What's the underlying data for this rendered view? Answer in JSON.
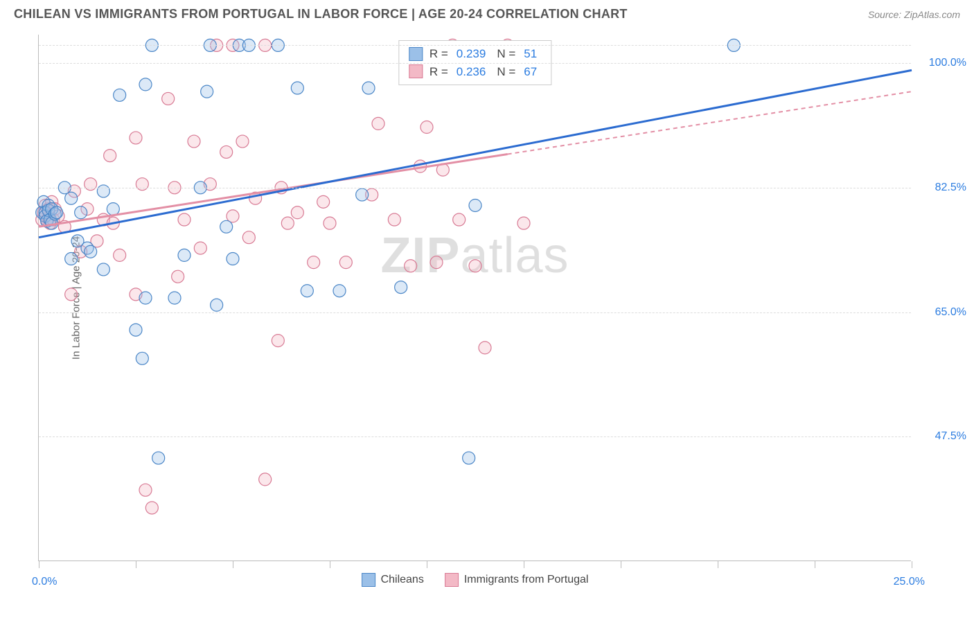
{
  "header": {
    "title": "CHILEAN VS IMMIGRANTS FROM PORTUGAL IN LABOR FORCE | AGE 20-24 CORRELATION CHART",
    "source": "Source: ZipAtlas.com"
  },
  "chart": {
    "type": "scatter",
    "y_axis_title": "In Labor Force | Age 20-24",
    "watermark": "ZIPatlas",
    "background_color": "#ffffff",
    "grid_color": "#dddddd",
    "axis_color": "#bbbbbb",
    "x_range": [
      0,
      27
    ],
    "y_range": [
      30,
      104
    ],
    "x_ticks": [
      0,
      3,
      6,
      9,
      12,
      15,
      18,
      21,
      24,
      27
    ],
    "y_ticks": [
      {
        "v": 47.5,
        "label": "47.5%"
      },
      {
        "v": 65.0,
        "label": "65.0%"
      },
      {
        "v": 82.5,
        "label": "82.5%"
      },
      {
        "v": 100.0,
        "label": "100.0%"
      }
    ],
    "y_tick_color": "#2b7ce0",
    "x_corner_left": "0.0%",
    "x_corner_right": "25.0%",
    "x_corner_color": "#2b7ce0",
    "marker_radius": 9,
    "marker_stroke_width": 1.2,
    "marker_fill_opacity": 0.35,
    "trend_line_width": 3,
    "series": [
      {
        "id": "chileans",
        "label": "Chileans",
        "fill": "#9bc0e8",
        "stroke": "#4a86c7",
        "r_value": "0.239",
        "n_value": "51",
        "trend": {
          "x1": 0,
          "y1": 75.5,
          "x2": 27,
          "y2": 99.0,
          "dash": "none",
          "color": "#2b6bd0"
        },
        "points": [
          [
            0.1,
            79
          ],
          [
            0.15,
            80.5
          ],
          [
            0.2,
            79
          ],
          [
            0.2,
            78.5
          ],
          [
            0.25,
            77.8
          ],
          [
            0.3,
            80
          ],
          [
            0.3,
            79.3
          ],
          [
            0.35,
            78
          ],
          [
            0.4,
            79.5
          ],
          [
            0.4,
            77.5
          ],
          [
            0.5,
            78.8
          ],
          [
            0.55,
            79
          ],
          [
            0.8,
            82.5
          ],
          [
            1.0,
            81
          ],
          [
            1.0,
            72.5
          ],
          [
            1.2,
            75
          ],
          [
            1.3,
            79
          ],
          [
            1.5,
            74
          ],
          [
            1.6,
            73.5
          ],
          [
            2.0,
            82
          ],
          [
            2.0,
            71
          ],
          [
            2.3,
            79.5
          ],
          [
            2.5,
            95.5
          ],
          [
            3.0,
            62.5
          ],
          [
            3.2,
            58.5
          ],
          [
            3.3,
            67
          ],
          [
            3.3,
            97
          ],
          [
            3.5,
            102.5
          ],
          [
            3.7,
            44.5
          ],
          [
            4.2,
            67
          ],
          [
            4.5,
            73
          ],
          [
            5.0,
            82.5
          ],
          [
            5.2,
            96
          ],
          [
            5.3,
            102.5
          ],
          [
            5.5,
            66
          ],
          [
            5.8,
            77
          ],
          [
            6.0,
            72.5
          ],
          [
            6.2,
            102.5
          ],
          [
            6.5,
            102.5
          ],
          [
            7.4,
            102.5
          ],
          [
            8.0,
            96.5
          ],
          [
            8.3,
            68
          ],
          [
            9.3,
            68
          ],
          [
            10.0,
            81.5
          ],
          [
            10.2,
            96.5
          ],
          [
            11.2,
            68.5
          ],
          [
            13.3,
            44.5
          ],
          [
            13.5,
            80
          ],
          [
            21.5,
            102.5
          ]
        ]
      },
      {
        "id": "portugal",
        "label": "Immigrants from Portugal",
        "fill": "#f3b9c6",
        "stroke": "#d87a94",
        "r_value": "0.236",
        "n_value": "67",
        "trend": {
          "x1": 0,
          "y1": 77.0,
          "x2": 27,
          "y2": 96.0,
          "dash": "6,5",
          "color": "#e38fa5",
          "solid_until": 14.5
        },
        "points": [
          [
            0.1,
            78
          ],
          [
            0.15,
            79
          ],
          [
            0.2,
            78.5
          ],
          [
            0.2,
            80
          ],
          [
            0.25,
            78
          ],
          [
            0.3,
            79.5
          ],
          [
            0.3,
            78.2
          ],
          [
            0.35,
            77.5
          ],
          [
            0.4,
            80.5
          ],
          [
            0.45,
            78
          ],
          [
            0.5,
            79.5
          ],
          [
            0.6,
            78.5
          ],
          [
            0.8,
            77
          ],
          [
            1.0,
            67.5
          ],
          [
            1.1,
            82
          ],
          [
            1.3,
            73.5
          ],
          [
            1.5,
            79.5
          ],
          [
            1.6,
            83
          ],
          [
            1.8,
            75
          ],
          [
            2.0,
            78
          ],
          [
            2.2,
            87
          ],
          [
            2.3,
            77.5
          ],
          [
            2.5,
            73
          ],
          [
            3.0,
            89.5
          ],
          [
            3.0,
            67.5
          ],
          [
            3.2,
            83
          ],
          [
            3.3,
            40
          ],
          [
            3.5,
            37.5
          ],
          [
            4.0,
            95
          ],
          [
            4.2,
            82.5
          ],
          [
            4.3,
            70
          ],
          [
            4.5,
            78
          ],
          [
            4.8,
            89
          ],
          [
            5.0,
            74
          ],
          [
            5.3,
            83
          ],
          [
            5.5,
            102.5
          ],
          [
            5.8,
            87.5
          ],
          [
            6.0,
            78.5
          ],
          [
            6.0,
            102.5
          ],
          [
            6.3,
            89
          ],
          [
            6.5,
            75.5
          ],
          [
            6.7,
            81
          ],
          [
            7.0,
            102.5
          ],
          [
            7.0,
            41.5
          ],
          [
            7.4,
            61
          ],
          [
            7.5,
            82.5
          ],
          [
            7.7,
            77.5
          ],
          [
            8.0,
            79
          ],
          [
            8.5,
            72
          ],
          [
            8.8,
            80.5
          ],
          [
            9.0,
            77.5
          ],
          [
            9.5,
            72
          ],
          [
            10.3,
            81.5
          ],
          [
            10.5,
            91.5
          ],
          [
            11.0,
            78
          ],
          [
            11.5,
            71.5
          ],
          [
            11.8,
            85.5
          ],
          [
            12.0,
            91
          ],
          [
            12.3,
            72
          ],
          [
            12.5,
            85
          ],
          [
            12.8,
            102.5
          ],
          [
            13.0,
            78
          ],
          [
            13.5,
            71.5
          ],
          [
            13.8,
            60
          ],
          [
            14.5,
            102.5
          ],
          [
            15.0,
            77.5
          ]
        ]
      }
    ],
    "legend_stats_border": "#cccccc",
    "bottom_legend": {
      "items": [
        {
          "swatch_fill": "#9bc0e8",
          "swatch_stroke": "#4a86c7",
          "label": "Chileans"
        },
        {
          "swatch_fill": "#f3b9c6",
          "swatch_stroke": "#d87a94",
          "label": "Immigrants from Portugal"
        }
      ]
    }
  }
}
